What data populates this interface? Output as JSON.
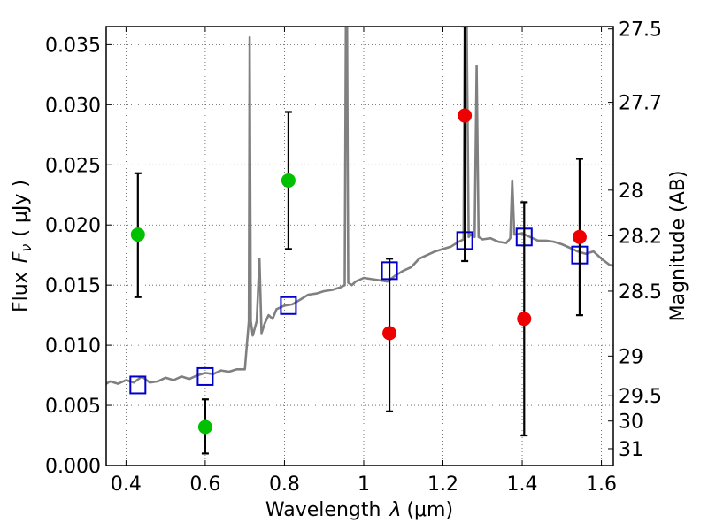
{
  "chart_data": {
    "type": "scatter",
    "xlabel_text": "Wavelength",
    "xlabel_symbol": "λ",
    "xlabel_unit": "(μm)",
    "ylabel_text": "Flux",
    "ylabel_symbol": "F",
    "ylabel_sub": "ν",
    "ylabel_unit": "( μJy )",
    "y2label": "Magnitude (AB)",
    "xlim": [
      0.35,
      1.63
    ],
    "ylim": [
      0.0,
      0.0365
    ],
    "grid": true,
    "x_ticks": [
      {
        "value": 0.4,
        "label": "0.4"
      },
      {
        "value": 0.6,
        "label": "0.6"
      },
      {
        "value": 0.8,
        "label": "0.8"
      },
      {
        "value": 1.0,
        "label": "1"
      },
      {
        "value": 1.2,
        "label": "1.2"
      },
      {
        "value": 1.4,
        "label": "1.4"
      },
      {
        "value": 1.6,
        "label": "1.6"
      }
    ],
    "y_ticks": [
      {
        "value": 0.0,
        "label": "0.000"
      },
      {
        "value": 0.005,
        "label": "0.005"
      },
      {
        "value": 0.01,
        "label": "0.010"
      },
      {
        "value": 0.015,
        "label": "0.015"
      },
      {
        "value": 0.02,
        "label": "0.020"
      },
      {
        "value": 0.025,
        "label": "0.025"
      },
      {
        "value": 0.03,
        "label": "0.030"
      },
      {
        "value": 0.035,
        "label": "0.035"
      }
    ],
    "y2_ticks": [
      {
        "label": "27.5",
        "flux": 0.0363
      },
      {
        "label": "27.7",
        "flux": 0.0302
      },
      {
        "label": "28",
        "flux": 0.0229
      },
      {
        "label": "28.2",
        "flux": 0.0191
      },
      {
        "label": "28.5",
        "flux": 0.0145
      },
      {
        "label": "29",
        "flux": 0.0091
      },
      {
        "label": "29.5",
        "flux": 0.0058
      },
      {
        "label": "30",
        "flux": 0.0037
      },
      {
        "label": "31",
        "flux": 0.0014
      }
    ],
    "colors": {
      "spectrum": "#808080",
      "model": "#0000cc",
      "green": "#00c000",
      "red": "#ee0000",
      "error": "#000000"
    },
    "spectrum": [
      [
        0.35,
        0.0068
      ],
      [
        0.36,
        0.007
      ],
      [
        0.38,
        0.0068
      ],
      [
        0.4,
        0.0071
      ],
      [
        0.42,
        0.0069
      ],
      [
        0.44,
        0.0074
      ],
      [
        0.46,
        0.0069
      ],
      [
        0.48,
        0.007
      ],
      [
        0.5,
        0.0073
      ],
      [
        0.52,
        0.0071
      ],
      [
        0.54,
        0.0074
      ],
      [
        0.56,
        0.0072
      ],
      [
        0.58,
        0.0075
      ],
      [
        0.6,
        0.0077
      ],
      [
        0.62,
        0.0076
      ],
      [
        0.64,
        0.0079
      ],
      [
        0.66,
        0.0078
      ],
      [
        0.68,
        0.008
      ],
      [
        0.7,
        0.008
      ],
      [
        0.705,
        0.01
      ],
      [
        0.71,
        0.012
      ],
      [
        0.712,
        0.0356
      ],
      [
        0.715,
        0.012
      ],
      [
        0.72,
        0.0108
      ],
      [
        0.73,
        0.012
      ],
      [
        0.737,
        0.0172
      ],
      [
        0.742,
        0.011
      ],
      [
        0.75,
        0.0118
      ],
      [
        0.76,
        0.0125
      ],
      [
        0.77,
        0.0122
      ],
      [
        0.78,
        0.013
      ],
      [
        0.8,
        0.0133
      ],
      [
        0.82,
        0.0134
      ],
      [
        0.84,
        0.0138
      ],
      [
        0.86,
        0.0142
      ],
      [
        0.88,
        0.0143
      ],
      [
        0.9,
        0.0145
      ],
      [
        0.92,
        0.0146
      ],
      [
        0.94,
        0.0148
      ],
      [
        0.952,
        0.015
      ],
      [
        0.955,
        0.0365
      ],
      [
        0.958,
        0.0365
      ],
      [
        0.961,
        0.0152
      ],
      [
        0.97,
        0.015
      ],
      [
        0.98,
        0.0153
      ],
      [
        1.0,
        0.0156
      ],
      [
        1.02,
        0.0155
      ],
      [
        1.04,
        0.0154
      ],
      [
        1.06,
        0.0153
      ],
      [
        1.08,
        0.0158
      ],
      [
        1.1,
        0.0162
      ],
      [
        1.12,
        0.0165
      ],
      [
        1.14,
        0.0172
      ],
      [
        1.16,
        0.0175
      ],
      [
        1.18,
        0.0178
      ],
      [
        1.2,
        0.018
      ],
      [
        1.22,
        0.0182
      ],
      [
        1.24,
        0.0186
      ],
      [
        1.252,
        0.0188
      ],
      [
        1.255,
        0.0365
      ],
      [
        1.26,
        0.0365
      ],
      [
        1.265,
        0.019
      ],
      [
        1.27,
        0.0192
      ],
      [
        1.28,
        0.019
      ],
      [
        1.285,
        0.0332
      ],
      [
        1.29,
        0.019
      ],
      [
        1.3,
        0.0188
      ],
      [
        1.32,
        0.0189
      ],
      [
        1.34,
        0.0186
      ],
      [
        1.36,
        0.0185
      ],
      [
        1.37,
        0.0189
      ],
      [
        1.375,
        0.0237
      ],
      [
        1.38,
        0.0192
      ],
      [
        1.4,
        0.0193
      ],
      [
        1.42,
        0.019
      ],
      [
        1.44,
        0.0187
      ],
      [
        1.46,
        0.0187
      ],
      [
        1.48,
        0.0186
      ],
      [
        1.5,
        0.0184
      ],
      [
        1.52,
        0.0181
      ],
      [
        1.54,
        0.0178
      ],
      [
        1.56,
        0.0176
      ],
      [
        1.58,
        0.0178
      ],
      [
        1.6,
        0.0172
      ],
      [
        1.62,
        0.0167
      ],
      [
        1.63,
        0.0166
      ]
    ],
    "model_points": [
      {
        "x": 0.43,
        "y": 0.0067
      },
      {
        "x": 0.6,
        "y": 0.0074
      },
      {
        "x": 0.81,
        "y": 0.0133
      },
      {
        "x": 1.065,
        "y": 0.0162
      },
      {
        "x": 1.255,
        "y": 0.0187
      },
      {
        "x": 1.405,
        "y": 0.019
      },
      {
        "x": 1.545,
        "y": 0.0175
      }
    ],
    "green_points": [
      {
        "x": 0.43,
        "y": 0.0192,
        "err_low": 0.014,
        "err_high": 0.0243
      },
      {
        "x": 0.6,
        "y": 0.0032,
        "err_low": 0.001,
        "err_high": 0.0055
      },
      {
        "x": 0.81,
        "y": 0.0237,
        "err_low": 0.018,
        "err_high": 0.0294
      }
    ],
    "red_points": [
      {
        "x": 1.065,
        "y": 0.011,
        "err_low": 0.0045,
        "err_high": 0.0172
      },
      {
        "x": 1.255,
        "y": 0.0291,
        "err_low": 0.017,
        "err_high": 0.0365
      },
      {
        "x": 1.405,
        "y": 0.0122,
        "err_low": 0.0025,
        "err_high": 0.0219
      },
      {
        "x": 1.545,
        "y": 0.019,
        "err_low": 0.0125,
        "err_high": 0.0255
      }
    ]
  }
}
